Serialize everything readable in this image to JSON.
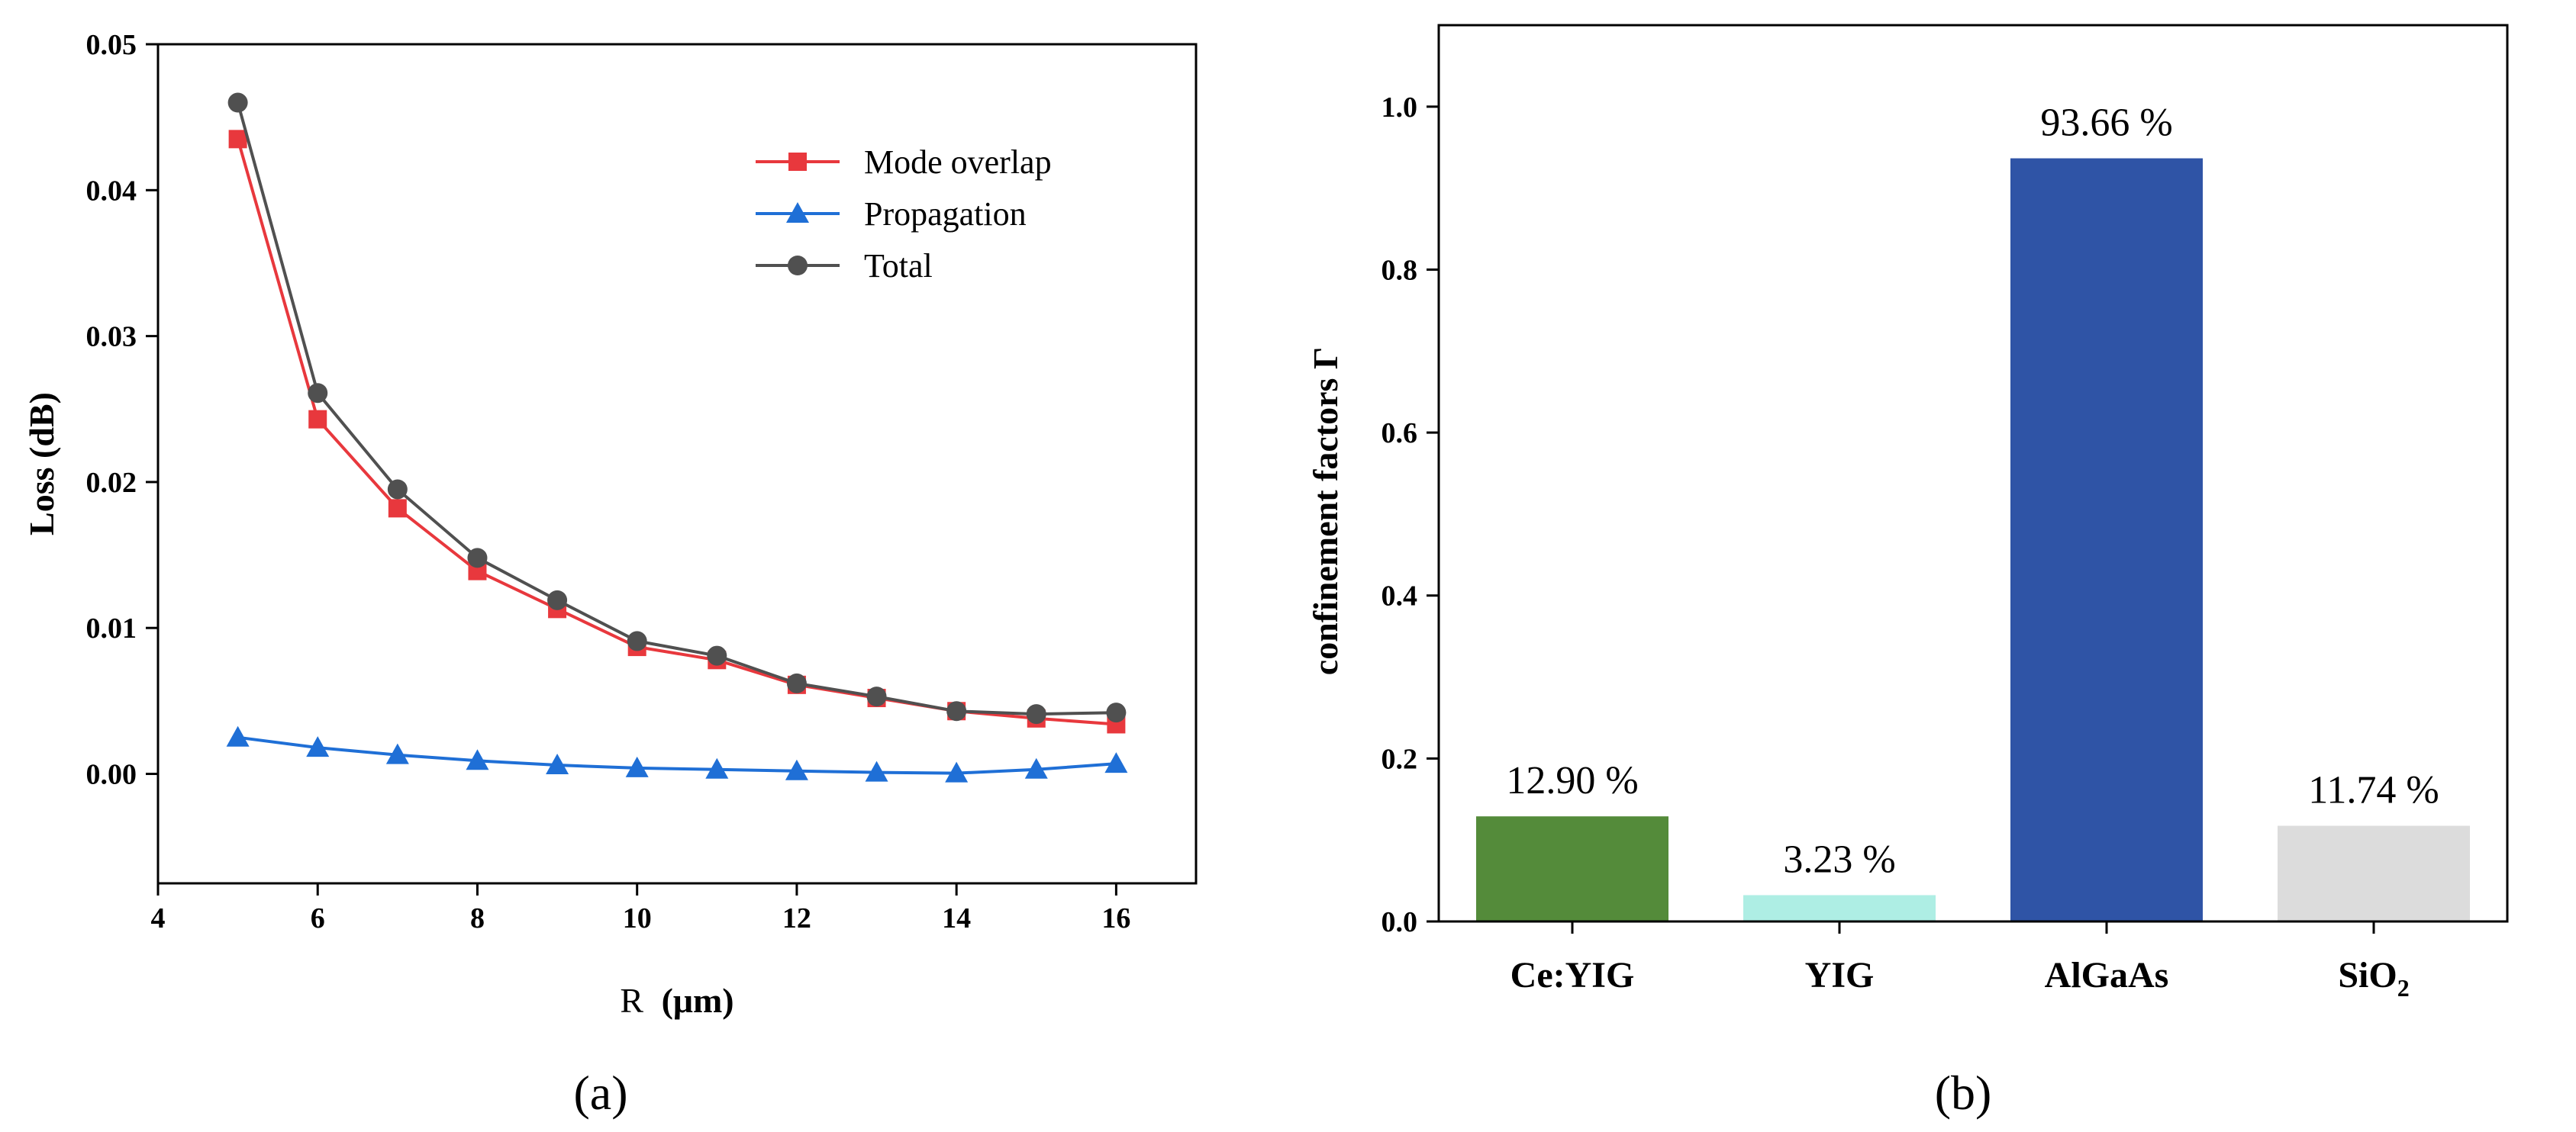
{
  "chart_data": [
    {
      "panel": "(a)",
      "type": "line",
      "title": "",
      "xlabel": {
        "main": "R",
        "unit": "(μm)"
      },
      "ylabel": "Loss (dB)",
      "xlim": [
        4,
        17
      ],
      "ylim": [
        -0.0075,
        0.05
      ],
      "xticks": [
        4,
        6,
        8,
        10,
        12,
        14,
        16
      ],
      "xtick_labels": [
        "4",
        "6",
        "8",
        "10",
        "12",
        "14",
        "16"
      ],
      "yticks": [
        0.0,
        0.01,
        0.02,
        0.03,
        0.04,
        0.05
      ],
      "ytick_labels": [
        "0.00",
        "0.01",
        "0.02",
        "0.03",
        "0.04",
        "0.05"
      ],
      "grid": false,
      "legend_position": "top-right",
      "x": [
        5,
        6,
        7,
        8,
        9,
        10,
        11,
        12,
        13,
        14,
        15,
        16
      ],
      "series": [
        {
          "name": "Mode overlap",
          "color": "#e8383d",
          "marker": "square",
          "values": [
            0.0435,
            0.0243,
            0.0182,
            0.0139,
            0.0113,
            0.0087,
            0.0078,
            0.0061,
            0.0052,
            0.0043,
            0.0038,
            0.0034
          ]
        },
        {
          "name": "Propagation",
          "color": "#1f6fd6",
          "marker": "triangle",
          "values": [
            0.0025,
            0.0018,
            0.0013,
            0.0009,
            0.0006,
            0.0004,
            0.0003,
            0.0002,
            0.0001,
            5e-05,
            0.0003,
            0.0007
          ]
        },
        {
          "name": "Total",
          "color": "#505050",
          "marker": "circle",
          "values": [
            0.046,
            0.0261,
            0.0195,
            0.0148,
            0.0119,
            0.0091,
            0.0081,
            0.0062,
            0.0053,
            0.0043,
            0.0041,
            0.0042
          ]
        }
      ]
    },
    {
      "panel": "(b)",
      "type": "bar",
      "title": "",
      "xlabel": "",
      "ylabel": "confinement factors Γ",
      "ylim": [
        0,
        1.1
      ],
      "yticks": [
        0.0,
        0.2,
        0.4,
        0.6,
        0.8,
        1.0
      ],
      "ytick_labels": [
        "0.0",
        "0.2",
        "0.4",
        "0.6",
        "0.8",
        "1.0"
      ],
      "grid": false,
      "categories": [
        "Ce:YIG",
        "YIG",
        "AlGaAs",
        "SiO"
      ],
      "category_subscripts": [
        "",
        "",
        "",
        "2"
      ],
      "values": [
        0.129,
        0.0323,
        0.9366,
        0.1174
      ],
      "data_labels": [
        "12.90 %",
        "3.23 %",
        "93.66 %",
        "11.74 %"
      ],
      "colors": [
        "#548b3a",
        "#aeeee4",
        "#2f54a6",
        "#dcdcdc"
      ]
    }
  ]
}
